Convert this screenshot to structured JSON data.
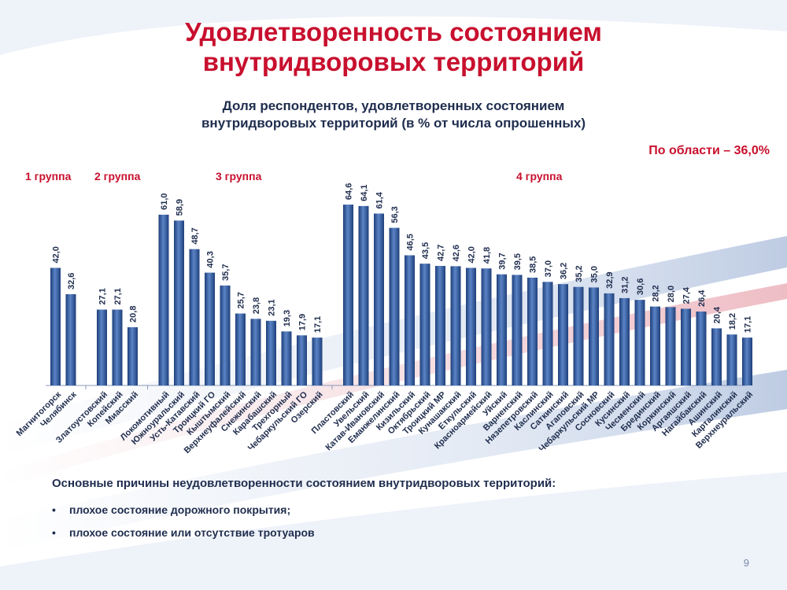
{
  "title_line1": "Удовлетворенность состоянием",
  "title_line2": "внутридворовых территорий",
  "subtitle_line1": "Доля респондентов, удовлетворенных состоянием",
  "subtitle_line2": "внутридворовых территорий (в % от числа опрошенных)",
  "region_total": "По области – 36,0%",
  "groups": [
    "1 группа",
    "2 группа",
    "3 группа",
    "4 группа"
  ],
  "reasons_title": "Основные причины неудовлетворенности состоянием внутридворовых территорий:",
  "reasons": [
    "плохое состояние дорожного покрытия;",
    "плохое состояние или отсутствие тротуаров"
  ],
  "bullet": "•",
  "page_number": "9",
  "colors": {
    "accent": "#c8102e",
    "bar_dark": "#1e3f7a",
    "bar_light": "#5b84c6",
    "text": "#1f2d4e"
  },
  "chart_data": {
    "type": "bar",
    "ylim": [
      0,
      70
    ],
    "grid": false,
    "groups": [
      {
        "label": "1 группа",
        "categories": [
          "Магнитогорск",
          "Челябинск"
        ],
        "values": [
          42.0,
          32.6
        ]
      },
      {
        "label": "2 группа",
        "categories": [
          "Златоустовский",
          "Копейский",
          "Миасский"
        ],
        "values": [
          27.1,
          27.1,
          20.8
        ]
      },
      {
        "label": "3 группа",
        "categories": [
          "Локомотивный",
          "Южноуральский",
          "Усть-Катавский",
          "Троицкий ГО",
          "Кыштымский",
          "Верхнеуфалейский",
          "Снежинский",
          "Карабашский",
          "Трехгорный",
          "Чебаркульский ГО",
          "Озерский"
        ],
        "values": [
          61.0,
          58.9,
          48.7,
          40.3,
          35.7,
          25.7,
          23.8,
          23.1,
          19.3,
          17.9,
          17.1
        ]
      },
      {
        "label": "4 группа",
        "categories": [
          "Пластовский",
          "Увельский",
          "Катав-Ивановский",
          "Еманжелинский",
          "Кизильский",
          "Октябрьский",
          "Троицкий МР",
          "Кунашакский",
          "Еткульский",
          "Красноармейский",
          "Уйский",
          "Варненский",
          "Нязепетровский",
          "Каслинский",
          "Саткинский",
          "Агаповский",
          "Чебаркульский МР",
          "Сосновский",
          "Кусинский",
          "Чесменский",
          "Брединский",
          "Коркинский",
          "Аргаяшский",
          "Нагайбакский",
          "Ашинский",
          "Карталинский",
          "Верхнеуральский"
        ],
        "values": [
          64.6,
          64.1,
          61.4,
          56.3,
          46.5,
          43.5,
          42.7,
          42.6,
          42.0,
          41.8,
          39.7,
          39.5,
          38.5,
          37.0,
          36.2,
          35.2,
          35.0,
          32.9,
          31.2,
          30.6,
          28.2,
          28.0,
          27.4,
          26.4,
          20.4,
          18.2,
          17.1
        ]
      }
    ]
  }
}
